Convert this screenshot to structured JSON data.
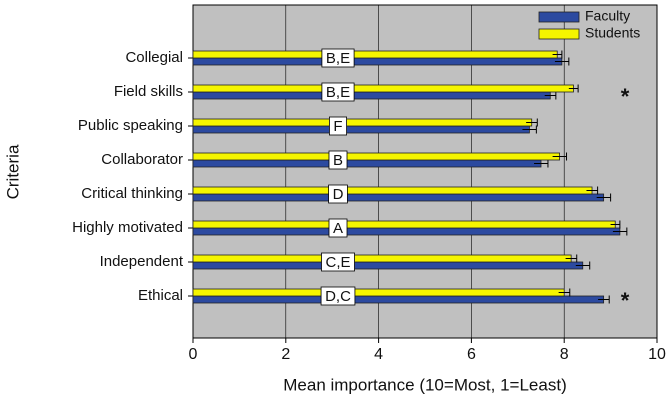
{
  "chart_data": {
    "type": "hbar",
    "xlabel": "Mean importance (10=Most, 1=Least)",
    "ylabel": "Criteria",
    "categories": [
      "Collegial",
      "Field skills",
      "Public speaking",
      "Collaborator",
      "Critical thinking",
      "Highly motivated",
      "Independent",
      "Ethical"
    ],
    "series": [
      {
        "name": "Faculty",
        "color": "#2c4aa0",
        "values": [
          7.95,
          7.7,
          7.25,
          7.5,
          8.85,
          9.2,
          8.4,
          8.85
        ],
        "errors": [
          0.15,
          0.12,
          0.15,
          0.15,
          0.15,
          0.15,
          0.15,
          0.12
        ]
      },
      {
        "name": "Students",
        "color": "#f5f500",
        "values": [
          7.85,
          8.2,
          7.3,
          7.9,
          8.6,
          9.1,
          8.15,
          8.0
        ],
        "errors": [
          0.1,
          0.1,
          0.12,
          0.15,
          0.12,
          0.1,
          0.12,
          0.12
        ]
      }
    ],
    "group_labels": [
      "B,E",
      "B,E",
      "F",
      "B",
      "D",
      "A",
      "C,E",
      "D,C"
    ],
    "markers": [
      {
        "category": "Field skills",
        "label": "*"
      },
      {
        "category": "Ethical",
        "label": "*"
      }
    ],
    "xlim": [
      0,
      10
    ],
    "xticks": [
      0,
      2,
      4,
      6,
      8,
      10
    ],
    "grid": true,
    "background": "#c0c0c0",
    "legend": "upper right"
  }
}
